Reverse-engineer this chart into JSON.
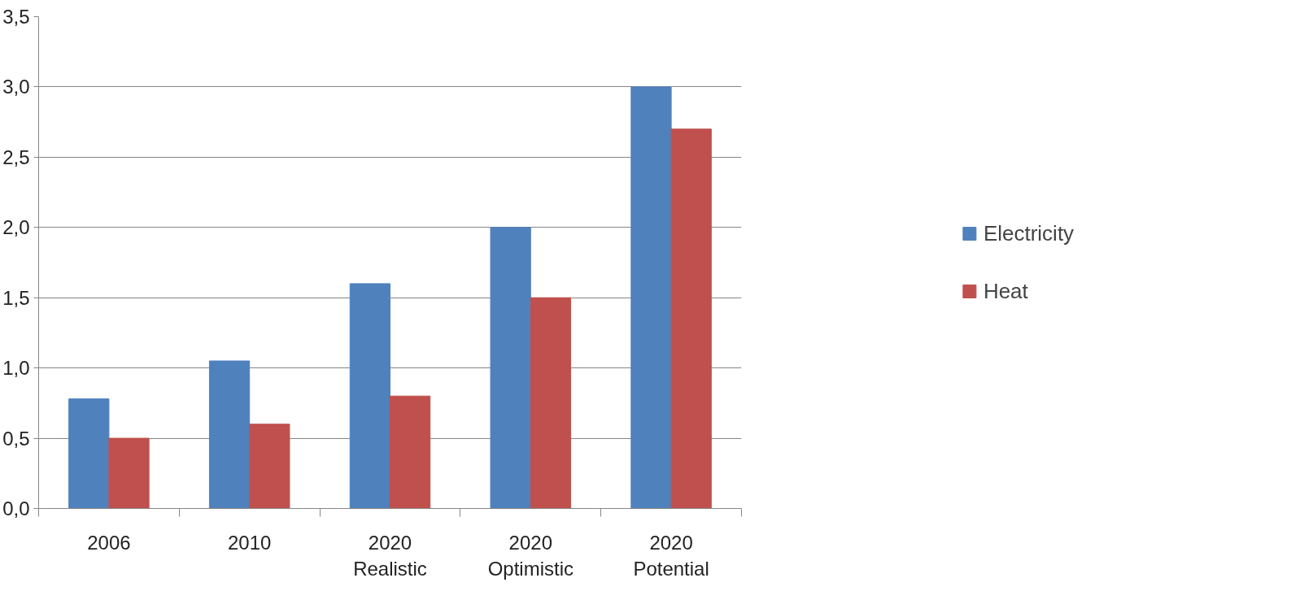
{
  "chart_data": {
    "type": "bar",
    "categories": [
      "2006",
      "2010",
      "2020\nRealistic",
      "2020\nOptimistic",
      "2020\nPotential"
    ],
    "series": [
      {
        "name": "Electricity",
        "color": "#4f81bd",
        "values": [
          0.78,
          1.05,
          1.6,
          2.0,
          3.0
        ]
      },
      {
        "name": "Heat",
        "color": "#c0504d",
        "values": [
          0.5,
          0.6,
          0.8,
          1.5,
          2.7
        ]
      }
    ],
    "ylim": [
      0,
      3.5
    ],
    "yticks": [
      {
        "value": 0,
        "label": "0,0"
      },
      {
        "value": 0.5,
        "label": "0,5"
      },
      {
        "value": 1,
        "label": "1,0"
      },
      {
        "value": 1.5,
        "label": "1,5"
      },
      {
        "value": 2,
        "label": "2,0"
      },
      {
        "value": 2.5,
        "label": "2,5"
      },
      {
        "value": 3,
        "label": "3,0"
      },
      {
        "value": 3.5,
        "label": "3,5"
      }
    ],
    "grid": "y",
    "legend": "right"
  }
}
